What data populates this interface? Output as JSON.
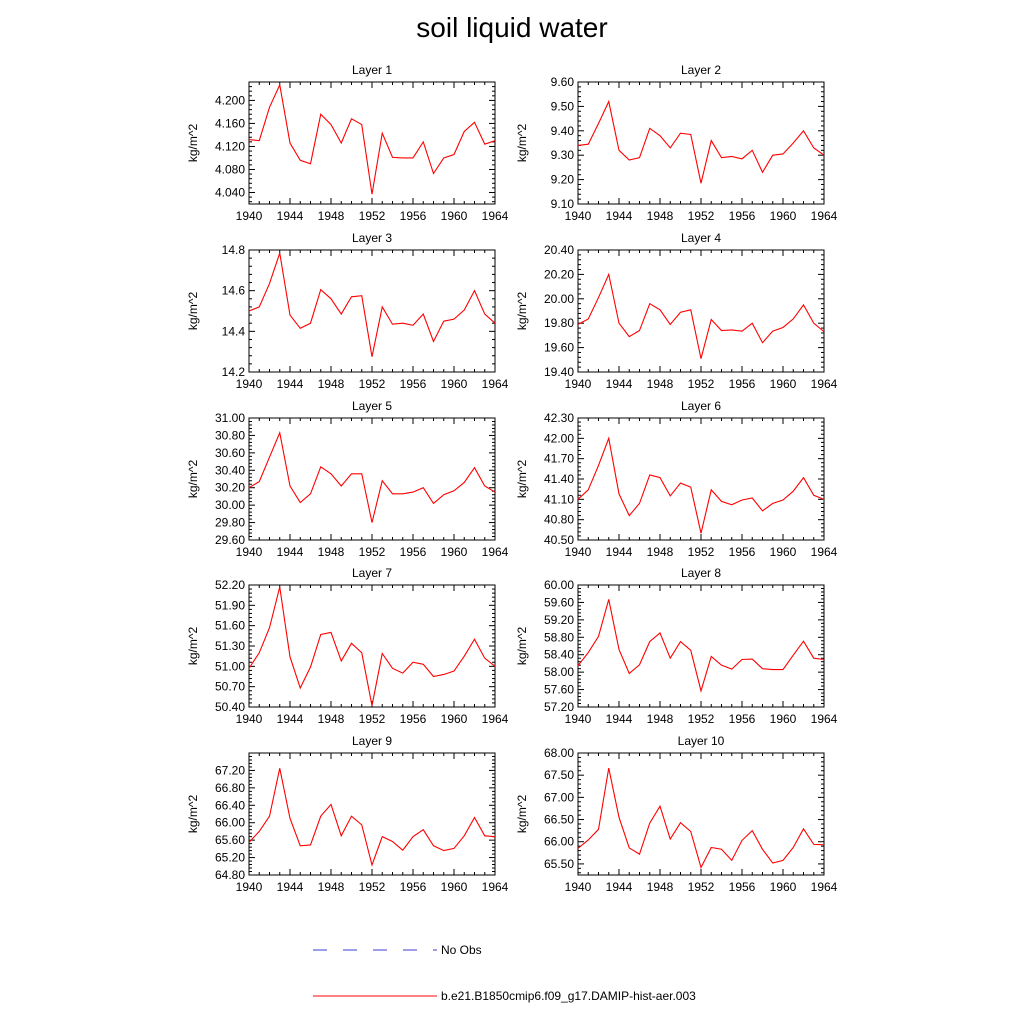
{
  "page_title": "soil liquid water",
  "legend": {
    "items": [
      {
        "label": "No Obs",
        "color": "#3b3bd6",
        "style": "dashed"
      },
      {
        "label": "b.e21.B1850cmip6.f09_g17.DAMIP-hist-aer.003",
        "color": "#ff0000",
        "style": "solid"
      }
    ]
  },
  "chart_data": [
    {
      "type": "line",
      "title": "Layer 1",
      "ylabel": "kg/m^2",
      "xlim": [
        1940,
        1964
      ],
      "ylim": [
        4.02,
        4.232
      ],
      "xticks": [
        1940,
        1944,
        1948,
        1952,
        1956,
        1960,
        1964
      ],
      "yticks": [
        "4.040",
        "4.080",
        "4.120",
        "4.160",
        "4.200"
      ],
      "ytick_values": [
        4.04,
        4.08,
        4.12,
        4.16,
        4.2
      ],
      "series": [
        {
          "x": [
            1940,
            1941,
            1942,
            1943,
            1944,
            1945,
            1946,
            1947,
            1948,
            1949,
            1950,
            1951,
            1952,
            1953,
            1954,
            1955,
            1956,
            1957,
            1958,
            1959,
            1960,
            1961,
            1962,
            1963,
            1964
          ],
          "values": [
            4.132,
            4.13,
            4.188,
            4.227,
            4.126,
            4.096,
            4.09,
            4.176,
            4.158,
            4.126,
            4.168,
            4.158,
            4.037,
            4.143,
            4.101,
            4.1,
            4.1,
            4.128,
            4.073,
            4.1,
            4.106,
            4.146,
            4.162,
            4.124,
            4.13
          ]
        }
      ]
    },
    {
      "type": "line",
      "title": "Layer 2",
      "ylabel": "kg/m^2",
      "xlim": [
        1940,
        1964
      ],
      "ylim": [
        9.1,
        9.6
      ],
      "xticks": [
        1940,
        1944,
        1948,
        1952,
        1956,
        1960,
        1964
      ],
      "yticks": [
        "9.10",
        "9.20",
        "9.30",
        "9.40",
        "9.50",
        "9.60"
      ],
      "ytick_values": [
        9.1,
        9.2,
        9.3,
        9.4,
        9.5,
        9.6
      ],
      "series": [
        {
          "x": [
            1940,
            1941,
            1942,
            1943,
            1944,
            1945,
            1946,
            1947,
            1948,
            1949,
            1950,
            1951,
            1952,
            1953,
            1954,
            1955,
            1956,
            1957,
            1958,
            1959,
            1960,
            1961,
            1962,
            1963,
            1964
          ],
          "values": [
            9.34,
            9.345,
            9.43,
            9.52,
            9.32,
            9.28,
            9.29,
            9.41,
            9.38,
            9.33,
            9.39,
            9.385,
            9.185,
            9.36,
            9.29,
            9.295,
            9.285,
            9.32,
            9.23,
            9.3,
            9.305,
            9.35,
            9.4,
            9.33,
            9.3
          ]
        }
      ]
    },
    {
      "type": "line",
      "title": "Layer 3",
      "ylabel": "kg/m^2",
      "xlim": [
        1940,
        1964
      ],
      "ylim": [
        14.2,
        14.8
      ],
      "xticks": [
        1940,
        1944,
        1948,
        1952,
        1956,
        1960,
        1964
      ],
      "yticks": [
        "14.2",
        "14.4",
        "14.6",
        "14.8"
      ],
      "ytick_values": [
        14.2,
        14.4,
        14.6,
        14.8
      ],
      "series": [
        {
          "x": [
            1940,
            1941,
            1942,
            1943,
            1944,
            1945,
            1946,
            1947,
            1948,
            1949,
            1950,
            1951,
            1952,
            1953,
            1954,
            1955,
            1956,
            1957,
            1958,
            1959,
            1960,
            1961,
            1962,
            1963,
            1964
          ],
          "values": [
            14.5,
            14.52,
            14.635,
            14.785,
            14.48,
            14.415,
            14.44,
            14.605,
            14.56,
            14.485,
            14.57,
            14.575,
            14.275,
            14.52,
            14.435,
            14.44,
            14.43,
            14.485,
            14.35,
            14.45,
            14.46,
            14.505,
            14.6,
            14.485,
            14.44
          ]
        }
      ]
    },
    {
      "type": "line",
      "title": "Layer 4",
      "ylabel": "kg/m^2",
      "xlim": [
        1940,
        1964
      ],
      "ylim": [
        19.4,
        20.4
      ],
      "xticks": [
        1940,
        1944,
        1948,
        1952,
        1956,
        1960,
        1964
      ],
      "yticks": [
        "19.40",
        "19.60",
        "19.80",
        "20.00",
        "20.20",
        "20.40"
      ],
      "ytick_values": [
        19.4,
        19.6,
        19.8,
        20.0,
        20.2,
        20.4
      ],
      "series": [
        {
          "x": [
            1940,
            1941,
            1942,
            1943,
            1944,
            1945,
            1946,
            1947,
            1948,
            1949,
            1950,
            1951,
            1952,
            1953,
            1954,
            1955,
            1956,
            1957,
            1958,
            1959,
            1960,
            1961,
            1962,
            1963,
            1964
          ],
          "values": [
            19.79,
            19.835,
            20.01,
            20.2,
            19.8,
            19.69,
            19.74,
            19.96,
            19.91,
            19.79,
            19.89,
            19.91,
            19.51,
            19.83,
            19.74,
            19.745,
            19.735,
            19.8,
            19.64,
            19.735,
            19.765,
            19.835,
            19.95,
            19.8,
            19.73
          ]
        }
      ]
    },
    {
      "type": "line",
      "title": "Layer 5",
      "ylabel": "kg/m^2",
      "xlim": [
        1940,
        1964
      ],
      "ylim": [
        29.6,
        31.0
      ],
      "xticks": [
        1940,
        1944,
        1948,
        1952,
        1956,
        1960,
        1964
      ],
      "yticks": [
        "29.60",
        "29.80",
        "30.00",
        "30.20",
        "30.40",
        "30.60",
        "30.80",
        "31.00"
      ],
      "ytick_values": [
        29.6,
        29.8,
        30.0,
        30.2,
        30.4,
        30.6,
        30.8,
        31.0
      ],
      "series": [
        {
          "x": [
            1940,
            1941,
            1942,
            1943,
            1944,
            1945,
            1946,
            1947,
            1948,
            1949,
            1950,
            1951,
            1952,
            1953,
            1954,
            1955,
            1956,
            1957,
            1958,
            1959,
            1960,
            1961,
            1962,
            1963,
            1964
          ],
          "values": [
            30.2,
            30.27,
            30.55,
            30.83,
            30.22,
            30.03,
            30.13,
            30.44,
            30.36,
            30.22,
            30.36,
            30.36,
            29.8,
            30.28,
            30.13,
            30.13,
            30.15,
            30.2,
            30.02,
            30.12,
            30.165,
            30.26,
            30.43,
            30.22,
            30.15
          ]
        }
      ]
    },
    {
      "type": "line",
      "title": "Layer 6",
      "ylabel": "kg/m^2",
      "xlim": [
        1940,
        1964
      ],
      "ylim": [
        40.5,
        42.3
      ],
      "xticks": [
        1940,
        1944,
        1948,
        1952,
        1956,
        1960,
        1964
      ],
      "yticks": [
        "40.50",
        "40.80",
        "41.10",
        "41.40",
        "41.70",
        "42.00",
        "42.30"
      ],
      "ytick_values": [
        40.5,
        40.8,
        41.1,
        41.4,
        41.7,
        42.0,
        42.3
      ],
      "series": [
        {
          "x": [
            1940,
            1941,
            1942,
            1943,
            1944,
            1945,
            1946,
            1947,
            1948,
            1949,
            1950,
            1951,
            1952,
            1953,
            1954,
            1955,
            1956,
            1957,
            1958,
            1959,
            1960,
            1961,
            1962,
            1963,
            1964
          ],
          "values": [
            41.1,
            41.24,
            41.6,
            42.0,
            41.18,
            40.86,
            41.04,
            41.46,
            41.42,
            41.15,
            41.34,
            41.28,
            40.6,
            41.24,
            41.07,
            41.02,
            41.09,
            41.12,
            40.93,
            41.04,
            41.09,
            41.22,
            41.42,
            41.16,
            41.1
          ]
        }
      ]
    },
    {
      "type": "line",
      "title": "Layer 7",
      "ylabel": "kg/m^2",
      "xlim": [
        1940,
        1964
      ],
      "ylim": [
        50.4,
        52.2
      ],
      "xticks": [
        1940,
        1944,
        1948,
        1952,
        1956,
        1960,
        1964
      ],
      "yticks": [
        "50.40",
        "50.70",
        "51.00",
        "51.30",
        "51.60",
        "51.90",
        "52.20"
      ],
      "ytick_values": [
        50.4,
        50.7,
        51.0,
        51.3,
        51.6,
        51.9,
        52.2
      ],
      "series": [
        {
          "x": [
            1940,
            1941,
            1942,
            1943,
            1944,
            1945,
            1946,
            1947,
            1948,
            1949,
            1950,
            1951,
            1952,
            1953,
            1954,
            1955,
            1956,
            1957,
            1958,
            1959,
            1960,
            1961,
            1962,
            1963,
            1964
          ],
          "values": [
            50.97,
            51.2,
            51.57,
            52.17,
            51.14,
            50.68,
            50.99,
            51.47,
            51.5,
            51.08,
            51.34,
            51.2,
            50.42,
            51.19,
            50.97,
            50.9,
            51.06,
            51.03,
            50.85,
            50.88,
            50.93,
            51.15,
            51.4,
            51.12,
            51.0
          ]
        }
      ]
    },
    {
      "type": "line",
      "title": "Layer 8",
      "ylabel": "kg/m^2",
      "xlim": [
        1940,
        1964
      ],
      "ylim": [
        57.2,
        60.0
      ],
      "xticks": [
        1940,
        1944,
        1948,
        1952,
        1956,
        1960,
        1964
      ],
      "yticks": [
        "57.20",
        "57.60",
        "58.00",
        "58.40",
        "58.80",
        "59.20",
        "59.60",
        "60.00"
      ],
      "ytick_values": [
        57.2,
        57.6,
        58.0,
        58.4,
        58.8,
        59.2,
        59.6,
        60.0
      ],
      "series": [
        {
          "x": [
            1940,
            1941,
            1942,
            1943,
            1944,
            1945,
            1946,
            1947,
            1948,
            1949,
            1950,
            1951,
            1952,
            1953,
            1954,
            1955,
            1956,
            1957,
            1958,
            1959,
            1960,
            1961,
            1962,
            1963,
            1964
          ],
          "values": [
            58.15,
            58.45,
            58.82,
            59.67,
            58.52,
            57.97,
            58.17,
            58.7,
            58.9,
            58.32,
            58.7,
            58.5,
            57.57,
            58.36,
            58.16,
            58.07,
            58.29,
            58.3,
            58.08,
            58.06,
            58.06,
            58.39,
            58.71,
            58.32,
            58.29
          ]
        }
      ]
    },
    {
      "type": "line",
      "title": "Layer 9",
      "ylabel": "kg/m^2",
      "xlim": [
        1940,
        1964
      ],
      "ylim": [
        64.8,
        67.6
      ],
      "xticks": [
        1940,
        1944,
        1948,
        1952,
        1956,
        1960,
        1964
      ],
      "yticks": [
        "64.80",
        "65.20",
        "65.60",
        "66.00",
        "66.40",
        "66.80",
        "67.20"
      ],
      "ytick_values": [
        64.8,
        65.2,
        65.6,
        66.0,
        66.4,
        66.8,
        67.2
      ],
      "series": [
        {
          "x": [
            1940,
            1941,
            1942,
            1943,
            1944,
            1945,
            1946,
            1947,
            1948,
            1949,
            1950,
            1951,
            1952,
            1953,
            1954,
            1955,
            1956,
            1957,
            1958,
            1959,
            1960,
            1961,
            1962,
            1963,
            1964
          ],
          "values": [
            65.55,
            65.8,
            66.15,
            67.25,
            66.1,
            65.47,
            65.49,
            66.15,
            66.42,
            65.7,
            66.15,
            65.95,
            65.03,
            65.68,
            65.57,
            65.37,
            65.68,
            65.84,
            65.47,
            65.36,
            65.41,
            65.7,
            66.12,
            65.7,
            65.68
          ]
        }
      ]
    },
    {
      "type": "line",
      "title": "Layer 10",
      "ylabel": "kg/m^2",
      "xlim": [
        1940,
        1964
      ],
      "ylim": [
        65.25,
        68.0
      ],
      "xticks": [
        1940,
        1944,
        1948,
        1952,
        1956,
        1960,
        1964
      ],
      "yticks": [
        "65.50",
        "66.00",
        "66.50",
        "67.00",
        "67.50",
        "68.00"
      ],
      "ytick_values": [
        65.5,
        66.0,
        66.5,
        67.0,
        67.5,
        68.0
      ],
      "series": [
        {
          "x": [
            1940,
            1941,
            1942,
            1943,
            1944,
            1945,
            1946,
            1947,
            1948,
            1949,
            1950,
            1951,
            1952,
            1953,
            1954,
            1955,
            1956,
            1957,
            1958,
            1959,
            1960,
            1961,
            1962,
            1963,
            1964
          ],
          "values": [
            65.85,
            66.04,
            66.28,
            67.66,
            66.55,
            65.86,
            65.72,
            66.42,
            66.8,
            66.06,
            66.43,
            66.23,
            65.42,
            65.87,
            65.83,
            65.58,
            66.03,
            66.25,
            65.83,
            65.52,
            65.58,
            65.87,
            66.29,
            65.94,
            65.93
          ]
        }
      ]
    }
  ]
}
